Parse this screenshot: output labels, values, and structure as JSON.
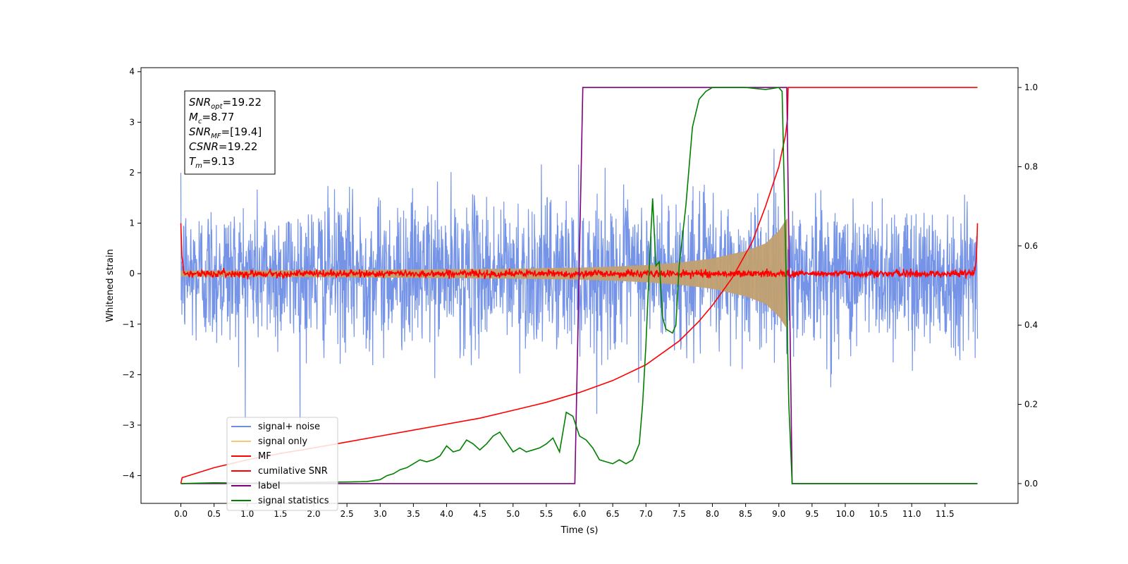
{
  "chart_data": {
    "type": "line",
    "xlabel": "Time (s)",
    "ylabel": "Whitened strain",
    "xlim": [
      -0.6,
      12.6
    ],
    "ylim": [
      -4.55,
      4.08
    ],
    "ylim_right": [
      -0.05,
      1.05
    ],
    "xticks": [
      "0.0",
      "0.5",
      "1.0",
      "1.5",
      "2.0",
      "2.5",
      "3.0",
      "3.5",
      "4.0",
      "4.5",
      "5.0",
      "5.5",
      "6.0",
      "6.5",
      "7.0",
      "7.5",
      "8.0",
      "8.5",
      "9.0",
      "9.5",
      "10.0",
      "10.5",
      "11.0",
      "11.5"
    ],
    "yticks_left": [
      "−4",
      "−3",
      "−2",
      "−1",
      "0",
      "1",
      "2",
      "3",
      "4"
    ],
    "yticks_right": [
      "0.0",
      "0.2",
      "0.4",
      "0.6",
      "0.8",
      "1.0"
    ],
    "legend_position": "lower-left",
    "grid": false,
    "legend": [
      {
        "label": "signal+ noise",
        "color": "#6f8ee6"
      },
      {
        "label": "signal only",
        "color": "#f5c87a"
      },
      {
        "label": "MF",
        "color": "#ff0000"
      },
      {
        "label": "cumilative SNR",
        "color": "#ff0000"
      },
      {
        "label": "label",
        "color": "#800080"
      },
      {
        "label": "signal statistics",
        "color": "#008000"
      }
    ],
    "annotation": {
      "lines": [
        {
          "base": "SNR",
          "sub": "opt",
          "value": "=19.22"
        },
        {
          "base": "M",
          "sub": "c",
          "value": "=8.77"
        },
        {
          "base": "SNR",
          "sub": "MF",
          "value": "=[19.4]"
        },
        {
          "base": "CSNR",
          "sub": "",
          "value": "=19.22"
        },
        {
          "base": "T",
          "sub": "m",
          "value": "=9.13"
        }
      ]
    },
    "series": [
      {
        "name": "signal+ noise",
        "axis": "left",
        "kind": "noise",
        "t_range": [
          0.0,
          11.99
        ],
        "rms": 0.72,
        "max_abs": 3.65
      },
      {
        "name": "signal only",
        "axis": "left",
        "kind": "chirp-envelope",
        "envelope": {
          "t": [
            0.0,
            1.0,
            2.0,
            3.0,
            4.0,
            5.0,
            6.0,
            6.5,
            7.0,
            7.5,
            8.0,
            8.5,
            8.8,
            9.0,
            9.1,
            9.13
          ],
          "amp": [
            0.06,
            0.065,
            0.07,
            0.08,
            0.09,
            0.1,
            0.12,
            0.14,
            0.17,
            0.22,
            0.3,
            0.45,
            0.6,
            0.85,
            1.05,
            1.1
          ]
        }
      },
      {
        "name": "MF",
        "axis": "left",
        "kind": "noise",
        "t_range": [
          0.0,
          11.99
        ],
        "rms": 0.035,
        "edge_value": 1.0
      },
      {
        "name": "cumilative SNR",
        "axis": "right",
        "x": [
          0.0,
          0.02,
          0.5,
          1.0,
          1.5,
          2.0,
          2.5,
          3.0,
          3.5,
          4.0,
          4.5,
          5.0,
          5.5,
          6.0,
          6.5,
          7.0,
          7.5,
          7.8,
          8.0,
          8.3,
          8.6,
          8.8,
          9.0,
          9.05,
          9.1,
          9.13,
          9.14,
          11.99
        ],
        "y": [
          0.0,
          0.015,
          0.04,
          0.06,
          0.076,
          0.09,
          0.105,
          0.12,
          0.135,
          0.15,
          0.165,
          0.185,
          0.205,
          0.23,
          0.26,
          0.3,
          0.36,
          0.41,
          0.45,
          0.52,
          0.61,
          0.7,
          0.8,
          0.84,
          0.88,
          0.92,
          1.0,
          1.0
        ]
      },
      {
        "name": "label",
        "axis": "right",
        "x": [
          0.0,
          5.93,
          6.05,
          9.12,
          9.2,
          11.99
        ],
        "y": [
          0.0,
          0.0,
          1.0,
          1.0,
          0.0,
          0.0
        ]
      },
      {
        "name": "signal statistics",
        "axis": "right",
        "x": [
          0.0,
          0.5,
          1.0,
          1.5,
          2.0,
          2.5,
          2.8,
          3.0,
          3.1,
          3.2,
          3.3,
          3.4,
          3.5,
          3.6,
          3.7,
          3.8,
          3.9,
          4.0,
          4.1,
          4.2,
          4.3,
          4.4,
          4.5,
          4.6,
          4.7,
          4.8,
          4.9,
          5.0,
          5.1,
          5.2,
          5.3,
          5.4,
          5.5,
          5.6,
          5.7,
          5.8,
          5.9,
          6.0,
          6.1,
          6.2,
          6.3,
          6.4,
          6.5,
          6.6,
          6.7,
          6.8,
          6.9,
          6.95,
          7.0,
          7.05,
          7.1,
          7.15,
          7.2,
          7.25,
          7.3,
          7.4,
          7.45,
          7.5,
          7.6,
          7.7,
          7.8,
          7.9,
          8.0,
          8.2,
          8.5,
          8.8,
          9.0,
          9.05,
          9.1,
          9.15,
          9.2,
          9.5,
          10.0,
          11.0,
          11.99
        ],
        "y": [
          0.0,
          0.002,
          0.001,
          0.002,
          0.003,
          0.004,
          0.005,
          0.01,
          0.02,
          0.025,
          0.035,
          0.04,
          0.05,
          0.06,
          0.055,
          0.06,
          0.07,
          0.095,
          0.08,
          0.085,
          0.11,
          0.1,
          0.085,
          0.1,
          0.12,
          0.13,
          0.105,
          0.08,
          0.09,
          0.08,
          0.085,
          0.09,
          0.1,
          0.115,
          0.08,
          0.18,
          0.17,
          0.12,
          0.11,
          0.09,
          0.06,
          0.055,
          0.05,
          0.06,
          0.05,
          0.06,
          0.1,
          0.2,
          0.35,
          0.55,
          0.72,
          0.55,
          0.56,
          0.42,
          0.39,
          0.38,
          0.4,
          0.55,
          0.7,
          0.9,
          0.97,
          0.99,
          1.0,
          1.0,
          1.0,
          0.995,
          1.0,
          0.99,
          0.6,
          0.2,
          0.0,
          0.0,
          0.0,
          0.0,
          0.0
        ]
      }
    ]
  }
}
